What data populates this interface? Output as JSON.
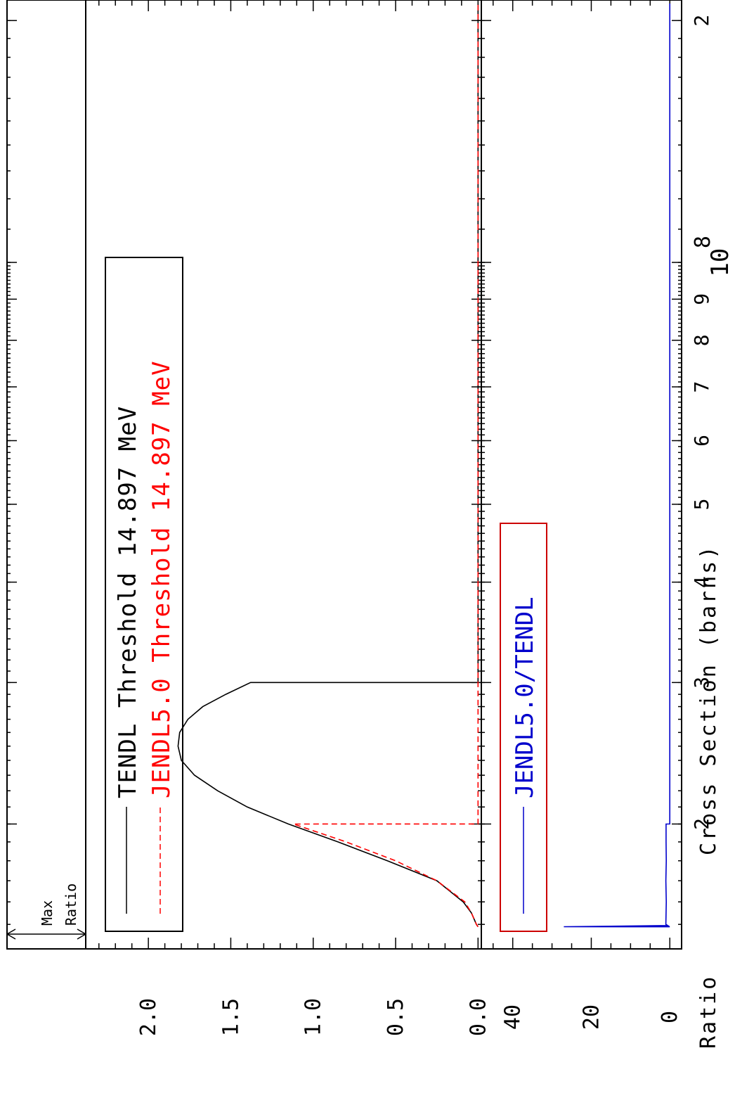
{
  "chart_data": [
    {
      "type": "line",
      "panel": "cross-section",
      "ylabel": "Cross Section (barns)",
      "yticks": [
        "0.0",
        "0.5",
        "1.0",
        "1.5",
        "2.0"
      ],
      "ylim": [
        -0.02,
        2.38
      ],
      "xscale": "log",
      "xlim": [
        14500000,
        210000000
      ],
      "xticks": [
        "2",
        "3",
        "4",
        "5",
        "6",
        "7",
        "8",
        "9",
        "10^8",
        "2"
      ],
      "max_ratio_label": [
        "Max",
        "Ratio"
      ],
      "legend_placement": "top-left",
      "series": [
        {
          "name": "TENDL Threshold 14.897 MeV",
          "color": "#000000",
          "dash": "solid",
          "x": [
            14897000,
            15000000,
            15500000,
            16000000,
            17000000,
            18000000,
            19000000,
            20000000,
            21000000,
            22000000,
            23000000,
            24000000,
            25000000,
            26000000,
            27000000,
            28000000,
            29000000,
            30000000,
            30001000,
            210000000
          ],
          "y": [
            0.0,
            0.01,
            0.04,
            0.09,
            0.25,
            0.55,
            0.85,
            1.15,
            1.4,
            1.58,
            1.72,
            1.8,
            1.82,
            1.81,
            1.76,
            1.67,
            1.53,
            1.38,
            0.0,
            0.0
          ]
        },
        {
          "name": "JENDL5.0 Threshold 14.897 MeV",
          "color": "#ff0000",
          "dash": "dashed",
          "x": [
            14897000,
            15000000,
            15500000,
            16000000,
            17000000,
            18000000,
            19000000,
            20000000,
            20001000,
            210000000
          ],
          "y": [
            0.0,
            0.01,
            0.04,
            0.08,
            0.25,
            0.5,
            0.8,
            1.12,
            0.0,
            0.0
          ]
        }
      ]
    },
    {
      "type": "line",
      "panel": "ratio",
      "ylabel": "Ratio",
      "yticks": [
        "0",
        "20",
        "40"
      ],
      "ylim": [
        -3,
        48
      ],
      "xscale": "log",
      "xlim": [
        14500000,
        210000000
      ],
      "legend_placement": "middle-left",
      "series": [
        {
          "name": "JENDL5.0/TENDL",
          "color": "#0000cc",
          "dash": "solid",
          "x": [
            14897000,
            14900000,
            14950000,
            15000000,
            16000000,
            17000000,
            18000000,
            19000000,
            20000000,
            20001000,
            30000000,
            30001000,
            210000000
          ],
          "y": [
            0.0,
            27,
            0.5,
            1.0,
            0.9,
            1.0,
            0.9,
            0.95,
            0.95,
            0.0,
            0.0,
            0.0,
            0.0
          ]
        }
      ]
    }
  ],
  "colors": {
    "frame": "#000000",
    "tendl": "#000000",
    "jendl": "#ff0000",
    "ratio": "#0000cc",
    "ratio_legend_border": "#cc0000"
  }
}
